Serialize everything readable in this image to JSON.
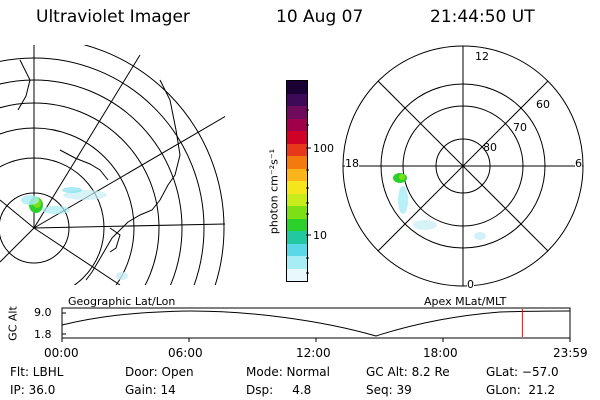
{
  "header": {
    "instrument": "Ultraviolet Imager",
    "date": "10 Aug 07",
    "time": "21:44:50 UT"
  },
  "maps": {
    "geo_label": "Geographic Lat/Lon",
    "apex_label": "Apex  MLat/MLT",
    "polar": {
      "mlt_labels": [
        "12",
        "18",
        "6",
        "0"
      ],
      "mlat_labels": [
        "60",
        "70",
        "80"
      ]
    }
  },
  "colorbar": {
    "unit_label": "photon cm⁻²s⁻¹",
    "ticks": [
      "100",
      "10"
    ],
    "colors": [
      "#1a0033",
      "#3d0a5a",
      "#6e0b5c",
      "#a0004a",
      "#d10026",
      "#e8381a",
      "#f47a10",
      "#fbb41a",
      "#f5e61c",
      "#c8ec1a",
      "#7ce014",
      "#2cd02a",
      "#22c8a0",
      "#5ad8e8",
      "#a8ecf5",
      "#e8f8fc"
    ]
  },
  "timeline": {
    "ylabel": "GC Alt",
    "yticks": [
      "9.0",
      "1.8"
    ],
    "xticks": [
      "00:00",
      "06:00",
      "12:00",
      "18:00",
      "23:59"
    ],
    "marker_hour": 21.75,
    "marker_color": "#ff0000"
  },
  "info": {
    "row1": [
      {
        "label": "Flt: LBHL"
      },
      {
        "label": "Door: Open"
      },
      {
        "label": "Mode: Normal"
      },
      {
        "label": "GC Alt: 8.2 Re"
      },
      {
        "label": "GLat: −57.0"
      }
    ],
    "row2": [
      {
        "label": "IP: 36.0"
      },
      {
        "label": "Gain: 14"
      },
      {
        "label": "Dsp:     4.8"
      },
      {
        "label": "Seq: 39"
      },
      {
        "label": "GLon:  21.2"
      }
    ]
  }
}
